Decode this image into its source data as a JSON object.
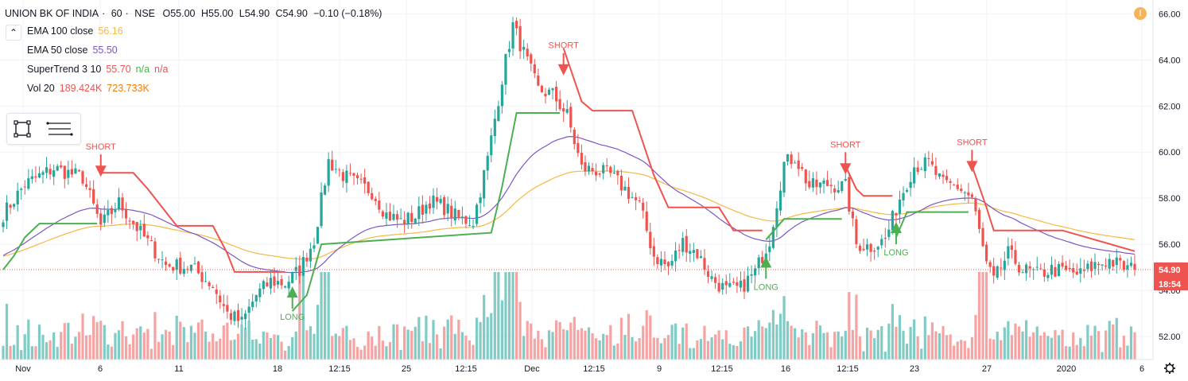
{
  "header": {
    "symbol": "UNION BK OF INDIA",
    "interval": "60",
    "exchange": "NSE",
    "open_label": "O",
    "open": "55.00",
    "high_label": "H",
    "high": "55.00",
    "low_label": "L",
    "low": "54.90",
    "close_label": "C",
    "close": "54.90",
    "change": "−0.10 (−0.18%)"
  },
  "indicators": [
    {
      "name": "EMA 100 close",
      "values": [
        "56.16"
      ],
      "color": "#f5b845"
    },
    {
      "name": "EMA 50 close",
      "values": [
        "55.50"
      ],
      "color": "#7e57c2"
    },
    {
      "name": "SuperTrend 3 10",
      "values": [
        "55.70",
        "n/a",
        "n/a"
      ],
      "colors": [
        "#ef5350",
        "#4caf50",
        "#ef5350"
      ]
    },
    {
      "name": "Vol 20",
      "values": [
        "189.424K",
        "723.733K"
      ],
      "colors": [
        "#ef5350",
        "#f57c00"
      ]
    }
  ],
  "icons": {
    "collapse": "chevron-up-icon",
    "rect_tool": "rectangle-tool-icon",
    "settings_tool": "object-tree-icon",
    "alert": "exclamation-icon",
    "settings": "gear-icon"
  },
  "alert_symbol": "!",
  "collapse_symbol": "⌃",
  "price_axis": {
    "labels": [
      "66.00",
      "64.00",
      "62.00",
      "60.00",
      "58.00",
      "56.00",
      "54.00",
      "52.00"
    ],
    "last_price": "54.90",
    "countdown": "18:54",
    "last_price_color": "#ef5350"
  },
  "time_axis": {
    "labels": [
      "Nov",
      "6",
      "11",
      "18",
      "12:15",
      "25",
      "12:15",
      "Dec",
      "12:15",
      "9",
      "12:15",
      "16",
      "12:15",
      "23",
      "27",
      "2020",
      "6"
    ]
  },
  "chart_data": {
    "type": "candlestick",
    "colors": {
      "up": "#26a69a",
      "down": "#ef5350",
      "vol_up": "#80cbc4",
      "vol_down": "#f5a3a3",
      "ema100": "#f5b845",
      "ema50": "#7e57c2",
      "st_up": "#4caf50",
      "st_down": "#ef5350"
    },
    "ylim": [
      51.0,
      66.6
    ],
    "signals": [
      {
        "label": "SHORT",
        "type": "short",
        "bar": 27,
        "price": 59.0
      },
      {
        "label": "LONG",
        "type": "long",
        "bar": 80,
        "price": 54.1
      },
      {
        "label": "SHORT",
        "type": "short",
        "bar": 155,
        "price": 63.4
      },
      {
        "label": "LONG",
        "type": "long",
        "bar": 211,
        "price": 55.4
      },
      {
        "label": "SHORT",
        "type": "short",
        "bar": 233,
        "price": 59.1
      },
      {
        "label": "LONG",
        "type": "long",
        "bar": 247,
        "price": 56.9
      },
      {
        "label": "SHORT",
        "type": "short",
        "bar": 268,
        "price": 59.2
      }
    ],
    "anchors": [
      [
        0,
        57.3
      ],
      [
        6,
        58.6
      ],
      [
        14,
        59.3
      ],
      [
        22,
        58.9
      ],
      [
        27,
        56.8
      ],
      [
        32,
        57.8
      ],
      [
        38,
        56.5
      ],
      [
        45,
        55.1
      ],
      [
        52,
        55.0
      ],
      [
        58,
        54.2
      ],
      [
        62,
        53.0
      ],
      [
        66,
        52.6
      ],
      [
        70,
        53.8
      ],
      [
        74,
        54.4
      ],
      [
        78,
        54.3
      ],
      [
        82,
        54.9
      ],
      [
        86,
        56.2
      ],
      [
        90,
        59.6
      ],
      [
        94,
        59.0
      ],
      [
        98,
        58.6
      ],
      [
        102,
        58.3
      ],
      [
        106,
        57.3
      ],
      [
        110,
        57.0
      ],
      [
        114,
        57.2
      ],
      [
        118,
        57.9
      ],
      [
        122,
        57.6
      ],
      [
        126,
        57.1
      ],
      [
        130,
        57.0
      ],
      [
        134,
        59.7
      ],
      [
        138,
        63.2
      ],
      [
        141,
        65.5
      ],
      [
        144,
        64.3
      ],
      [
        148,
        62.7
      ],
      [
        152,
        62.5
      ],
      [
        156,
        61.6
      ],
      [
        160,
        59.3
      ],
      [
        164,
        59.2
      ],
      [
        168,
        59.0
      ],
      [
        172,
        58.4
      ],
      [
        176,
        57.7
      ],
      [
        180,
        55.5
      ],
      [
        184,
        55.0
      ],
      [
        188,
        56.1
      ],
      [
        192,
        55.6
      ],
      [
        196,
        54.5
      ],
      [
        200,
        54.0
      ],
      [
        204,
        54.1
      ],
      [
        208,
        54.8
      ],
      [
        212,
        56.2
      ],
      [
        216,
        59.5
      ],
      [
        219,
        59.8
      ],
      [
        223,
        58.5
      ],
      [
        228,
        58.6
      ],
      [
        233,
        58.5
      ],
      [
        236,
        56.0
      ],
      [
        240,
        55.9
      ],
      [
        244,
        56.2
      ],
      [
        248,
        58.0
      ],
      [
        252,
        59.4
      ],
      [
        256,
        59.5
      ],
      [
        260,
        58.6
      ],
      [
        264,
        58.5
      ],
      [
        268,
        58.0
      ],
      [
        272,
        55.1
      ],
      [
        274,
        54.4
      ],
      [
        278,
        55.6
      ],
      [
        282,
        54.9
      ],
      [
        286,
        54.7
      ],
      [
        290,
        54.9
      ],
      [
        294,
        54.8
      ],
      [
        298,
        54.7
      ],
      [
        302,
        55.1
      ],
      [
        306,
        55.3
      ],
      [
        310,
        55.0
      ],
      [
        313,
        54.9
      ]
    ],
    "supertrend": [
      {
        "trend": "up",
        "points": [
          [
            0,
            54.9
          ],
          [
            3,
            55.5
          ],
          [
            6,
            56.3
          ],
          [
            10,
            56.9
          ],
          [
            26,
            56.9
          ]
        ]
      },
      {
        "trend": "down",
        "points": [
          [
            27,
            59.1
          ],
          [
            36,
            59.1
          ],
          [
            40,
            58.4
          ],
          [
            44,
            57.6
          ],
          [
            48,
            56.8
          ],
          [
            58,
            56.8
          ],
          [
            62,
            55.6
          ],
          [
            64,
            54.8
          ],
          [
            78,
            54.8
          ]
        ]
      },
      {
        "trend": "up",
        "points": [
          [
            80,
            53.1
          ],
          [
            84,
            53.8
          ],
          [
            88,
            56.0
          ],
          [
            135,
            56.5
          ],
          [
            138,
            58.5
          ],
          [
            142,
            61.7
          ],
          [
            154,
            61.7
          ]
        ]
      },
      {
        "trend": "down",
        "points": [
          [
            155,
            64.5
          ],
          [
            160,
            62.2
          ],
          [
            163,
            61.8
          ],
          [
            174,
            61.8
          ],
          [
            180,
            59.0
          ],
          [
            184,
            57.6
          ],
          [
            198,
            57.6
          ],
          [
            202,
            56.6
          ],
          [
            210,
            56.6
          ]
        ]
      },
      {
        "trend": "up",
        "points": [
          [
            211,
            56.2
          ],
          [
            216,
            57.1
          ],
          [
            220,
            57.1
          ],
          [
            232,
            57.1
          ]
        ]
      },
      {
        "trend": "down",
        "points": [
          [
            233,
            59.4
          ],
          [
            236,
            58.4
          ],
          [
            238,
            58.1
          ],
          [
            246,
            58.1
          ]
        ]
      },
      {
        "trend": "up",
        "points": [
          [
            247,
            56.3
          ],
          [
            250,
            57.4
          ],
          [
            267,
            57.4
          ]
        ]
      },
      {
        "trend": "down",
        "points": [
          [
            268,
            59.4
          ],
          [
            272,
            57.6
          ],
          [
            274,
            56.6
          ],
          [
            293,
            56.6
          ],
          [
            313,
            55.7
          ]
        ]
      }
    ]
  }
}
